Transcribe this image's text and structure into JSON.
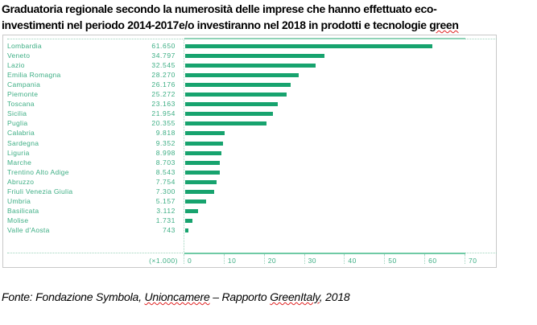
{
  "title": {
    "line1": "Graduatoria regionale secondo la numerosità delle imprese che hanno effettuato eco-",
    "line2_a": "investimenti nel periodo 2014-2017e/o investiranno nel 2018 in prodotti e tecnologie ",
    "line2_b": "green"
  },
  "source": {
    "a": "Fonte: Fondazione Symbola, ",
    "b": "Unioncamere",
    "c": " – Rapporto ",
    "d": "GreenItaly",
    "e": ", 2018"
  },
  "chart_data": {
    "type": "bar",
    "orientation": "horizontal",
    "unit_label": "(×1.000)",
    "xlim": [
      0,
      70
    ],
    "xticks": [
      "0",
      "10",
      "20",
      "30",
      "40",
      "50",
      "60",
      "70"
    ],
    "categories": [
      "Lombardia",
      "Veneto",
      "Lazio",
      "Emilia Romagna",
      "Campania",
      "Piemonte",
      "Toscana",
      "Sicilia",
      "Puglia",
      "Calabria",
      "Sardegna",
      "Liguria",
      "Marche",
      "Trentino Alto Adige",
      "Abruzzo",
      "Friuli Venezia Giulia",
      "Umbria",
      "Basilicata",
      "Molise",
      "Valle d'Aosta"
    ],
    "value_labels": [
      "61.650",
      "34.797",
      "32.545",
      "28.270",
      "26.176",
      "25.272",
      "23.163",
      "21.954",
      "20.355",
      "9.818",
      "9.352",
      "8.998",
      "8.703",
      "8.543",
      "7.754",
      "7.300",
      "5.157",
      "3.112",
      "1.731",
      "743"
    ],
    "values": [
      61650,
      34797,
      32545,
      28270,
      26176,
      25272,
      23163,
      21954,
      20355,
      9818,
      9352,
      8998,
      8703,
      8543,
      7754,
      7300,
      5157,
      3112,
      1731,
      743
    ],
    "bar_color": "#17a36e",
    "text_color": "#3dae84"
  }
}
